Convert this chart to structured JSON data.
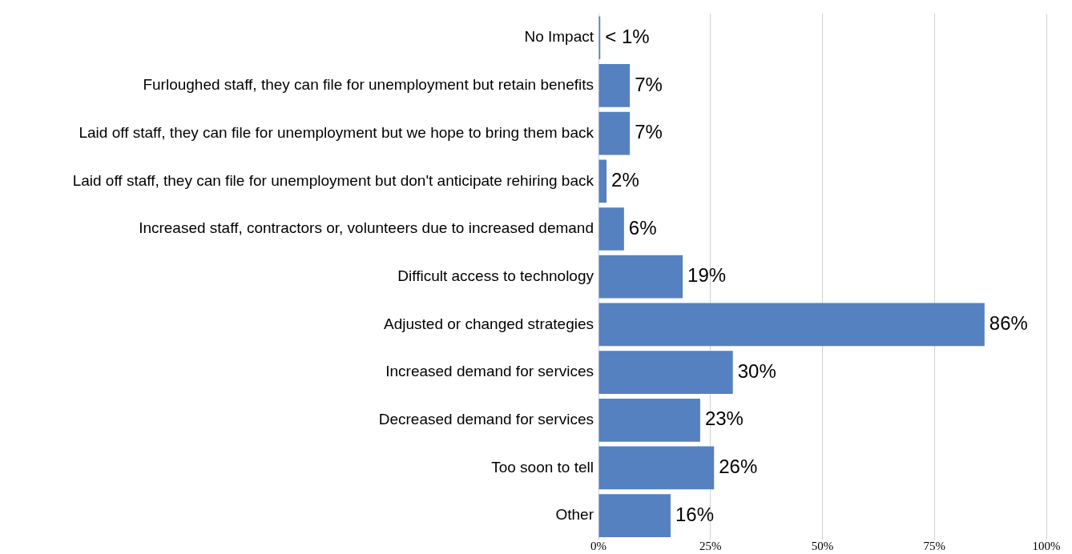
{
  "chart_data": {
    "type": "bar",
    "orientation": "horizontal",
    "categories": [
      "No Impact",
      "Furloughed staff, they can file for unemployment but retain benefits",
      "Laid off staff, they can file for unemployment but we hope to bring them back",
      "Laid off staff, they can file for unemployment but don't anticipate rehiring back",
      "Increased staff, contractors or, volunteers due to increased demand",
      "Difficult access to technology",
      "Adjusted or changed strategies",
      "Increased demand for services",
      "Decreased demand for services",
      "Too soon to tell",
      "Other"
    ],
    "values": [
      0.4,
      7,
      7,
      1.8,
      5.7,
      18.8,
      86.2,
      30,
      22.7,
      25.8,
      16.1
    ],
    "value_labels": [
      "< 1%",
      "7%",
      "7%",
      "2%",
      "6%",
      "19%",
      "86%",
      "30%",
      "23%",
      "26%",
      "16%"
    ],
    "color": "#5581c1",
    "xlim": [
      0,
      100
    ],
    "xticks": [
      {
        "value": 0,
        "label": "0%"
      },
      {
        "value": 25,
        "label": "25%"
      },
      {
        "value": 50,
        "label": "50%"
      },
      {
        "value": 75,
        "label": "75%"
      },
      {
        "value": 100,
        "label": "100%"
      }
    ],
    "grid": "x"
  }
}
